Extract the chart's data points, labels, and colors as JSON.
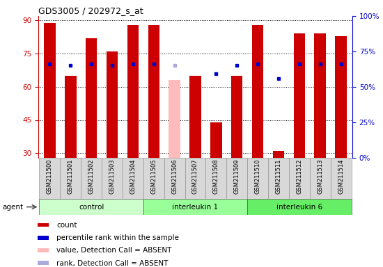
{
  "title": "GDS3005 / 202972_s_at",
  "samples": [
    "GSM211500",
    "GSM211501",
    "GSM211502",
    "GSM211503",
    "GSM211504",
    "GSM211505",
    "GSM211506",
    "GSM211507",
    "GSM211508",
    "GSM211509",
    "GSM211510",
    "GSM211511",
    "GSM211512",
    "GSM211513",
    "GSM211514"
  ],
  "red_values": [
    89,
    65,
    82,
    76,
    88,
    88,
    null,
    65,
    44,
    65,
    88,
    31,
    84,
    84,
    83
  ],
  "blue_dots": [
    66,
    65,
    66,
    65,
    66,
    66,
    null,
    null,
    59,
    65,
    66,
    56,
    66,
    66,
    66
  ],
  "absent_red": [
    null,
    null,
    null,
    null,
    null,
    null,
    63,
    null,
    null,
    null,
    null,
    null,
    null,
    null,
    null
  ],
  "absent_blue": [
    null,
    null,
    null,
    null,
    null,
    null,
    65,
    null,
    null,
    null,
    null,
    null,
    null,
    null,
    null
  ],
  "groups": [
    {
      "label": "control",
      "start": 0,
      "end": 4,
      "color": "#ccffcc"
    },
    {
      "label": "interleukin 1",
      "start": 5,
      "end": 9,
      "color": "#99ff99"
    },
    {
      "label": "interleukin 6",
      "start": 10,
      "end": 14,
      "color": "#66ee66"
    }
  ],
  "ylim_left": [
    28,
    92
  ],
  "yticks_left": [
    30,
    45,
    60,
    75,
    90
  ],
  "ytick_labels_right": [
    "0%",
    "25%",
    "50%",
    "75%",
    "100%"
  ],
  "yticks_right": [
    0,
    25,
    50,
    75,
    100
  ],
  "ylim_right": [
    0,
    100
  ],
  "bar_width": 0.55,
  "bar_color_red": "#cc0000",
  "bar_color_absent": "#ffbbbb",
  "dot_color_blue": "#0000cc",
  "dot_color_absent": "#aaaadd",
  "left_tick_color": "#cc0000",
  "right_tick_color": "#0000cc",
  "legend_items": [
    {
      "color": "#cc0000",
      "label": "count"
    },
    {
      "color": "#0000cc",
      "label": "percentile rank within the sample"
    },
    {
      "color": "#ffbbbb",
      "label": "value, Detection Call = ABSENT"
    },
    {
      "color": "#aaaadd",
      "label": "rank, Detection Call = ABSENT"
    }
  ],
  "agent_label": "agent"
}
